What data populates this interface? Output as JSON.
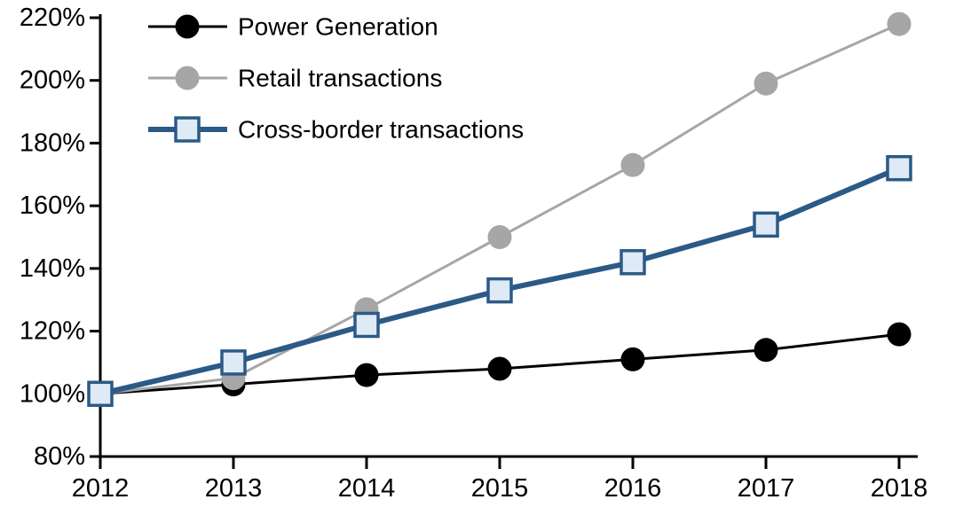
{
  "chart_data": {
    "type": "line",
    "title": "",
    "xlabel": "",
    "ylabel": "",
    "x_labels": [
      "2012",
      "2013",
      "2014",
      "2015",
      "2016",
      "2017",
      "2018"
    ],
    "ylim": [
      80,
      220
    ],
    "y_ticks": [
      {
        "label": "220%",
        "value": 220
      },
      {
        "label": "200%",
        "value": 200
      },
      {
        "label": "180%",
        "value": 180
      },
      {
        "label": "160%",
        "value": 160
      },
      {
        "label": "140%",
        "value": 140
      },
      {
        "label": "120%",
        "value": 120
      },
      {
        "label": "100%",
        "value": 100
      },
      {
        "label": "80%",
        "value": 80
      }
    ],
    "grid": false,
    "legend_position": "top-left",
    "axis_color": "#000000",
    "series": [
      {
        "name": "Power Generation",
        "id": "power-generation",
        "color": "#000000",
        "marker": "circle",
        "marker_fill": "#000000",
        "line_width": 3,
        "values": [
          100,
          103,
          106,
          108,
          111,
          114,
          119
        ]
      },
      {
        "name": "Retail transactions",
        "id": "retail-transactions",
        "color": "#A6A6A6",
        "marker": "circle",
        "marker_fill": "#A6A6A6",
        "line_width": 3,
        "values": [
          100,
          105,
          127,
          150,
          173,
          199,
          218
        ]
      },
      {
        "name": "Cross-border transactions",
        "id": "cross-border-transactions",
        "color": "#2B5A87",
        "marker": "square",
        "marker_fill": "#DEEAF6",
        "line_width": 6,
        "values": [
          100,
          110,
          122,
          133,
          142,
          154,
          172
        ]
      }
    ]
  }
}
